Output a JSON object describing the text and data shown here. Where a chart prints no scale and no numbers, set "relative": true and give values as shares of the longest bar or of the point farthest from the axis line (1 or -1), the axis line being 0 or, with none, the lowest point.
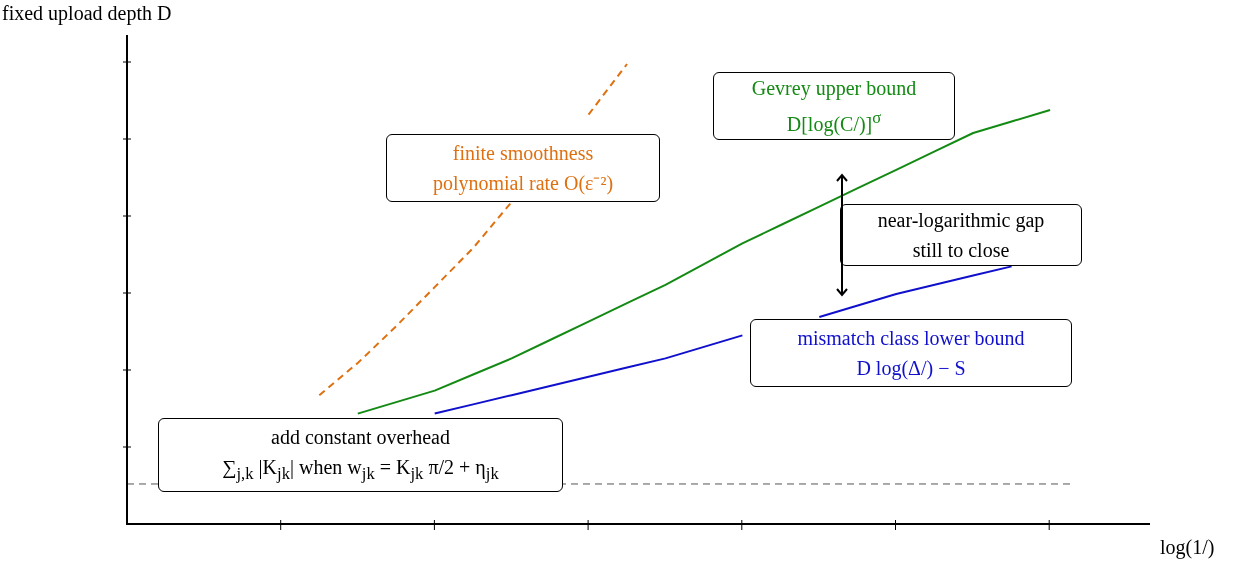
{
  "chart_data": {
    "type": "line",
    "relative": true,
    "xlabel": "log(1/)",
    "ylabel": "fixed upload depth D",
    "legend": false,
    "marker": "none",
    "categories": [
      null,
      null,
      null,
      null,
      null,
      null,
      null,
      null,
      null,
      null,
      null,
      null,
      null,
      null,
      null,
      null,
      null,
      null,
      null,
      null,
      null,
      null,
      null,
      null,
      null,
      null,
      null
    ],
    "series": [
      {
        "name": "finite smoothness\npolynomial rate O(ε⁻²)",
        "color": "#df7010",
        "line_style": "dashed",
        "values": [
          null,
          null,
          null,
          null,
          null,
          0.28,
          0.35,
          0.43,
          0.515,
          0.6,
          0.7,
          null,
          0.89,
          1,
          null,
          null,
          null,
          null,
          null,
          null,
          null,
          null,
          null,
          null,
          null,
          null,
          null
        ]
      },
      {
        "name": "Gevrey upper bound\nD[log(C/)]$^{σ}$",
        "color": "#138a13",
        "line_style": "solid",
        "values": [
          null,
          null,
          null,
          null,
          null,
          null,
          0.24,
          0.265,
          0.29,
          0.325,
          0.36,
          0.4,
          0.44,
          0.48,
          0.52,
          0.565,
          0.61,
          0.65,
          0.69,
          0.73,
          0.77,
          0.81,
          0.85,
          0.875,
          0.9,
          null,
          null
        ]
      },
      {
        "name": "mismatch class lower bound\nD log(Δ/) − S",
        "color": "#1010cc",
        "line_style": "solid",
        "values": [
          null,
          null,
          null,
          null,
          null,
          null,
          null,
          null,
          0.24,
          0.26,
          0.28,
          0.3,
          0.32,
          0.34,
          0.36,
          0.385,
          0.41,
          null,
          0.45,
          0.475,
          0.5,
          0.52,
          0.54,
          0.56,
          null,
          null,
          null
        ]
      }
    ],
    "ref_lines": [
      {
        "axis": "y",
        "value": 0.087,
        "label": "add constant overhead\n∑$_{j,k}$ |K$_{jk}$| when w$_{jk}$ = K$_{jk}$ π/2 + η$_{jk}$",
        "color": "#555555",
        "line_style": "dashed"
      }
    ],
    "annotations": [
      "near-logarithmic gap\nstill to close"
    ]
  }
}
